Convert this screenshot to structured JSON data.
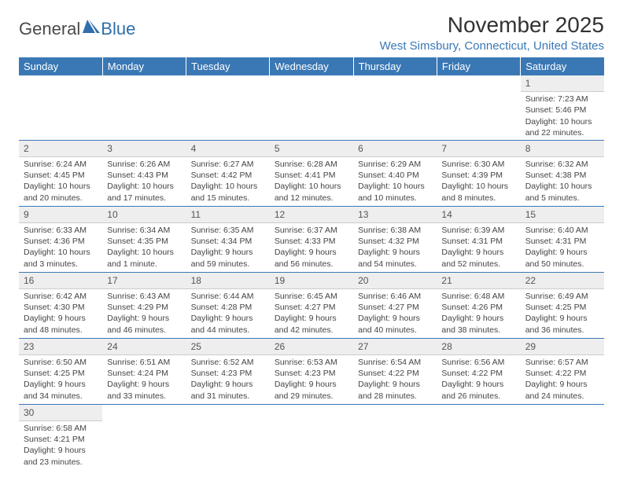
{
  "logo": {
    "text1": "General",
    "text2": "Blue"
  },
  "title": "November 2025",
  "location": "West Simsbury, Connecticut, United States",
  "colors": {
    "header_bg": "#3a78b5",
    "header_text": "#ffffff",
    "day_num_bg": "#eeeeee",
    "cell_border": "#3a78b5",
    "body_bg": "#ffffff",
    "text": "#333333",
    "location_color": "#3a78b5"
  },
  "weekdays": [
    "Sunday",
    "Monday",
    "Tuesday",
    "Wednesday",
    "Thursday",
    "Friday",
    "Saturday"
  ],
  "weeks": [
    [
      {
        "empty": true
      },
      {
        "empty": true
      },
      {
        "empty": true
      },
      {
        "empty": true
      },
      {
        "empty": true
      },
      {
        "empty": true
      },
      {
        "num": "1",
        "sunrise": "Sunrise: 7:23 AM",
        "sunset": "Sunset: 5:46 PM",
        "daylight": "Daylight: 10 hours and 22 minutes."
      }
    ],
    [
      {
        "num": "2",
        "sunrise": "Sunrise: 6:24 AM",
        "sunset": "Sunset: 4:45 PM",
        "daylight": "Daylight: 10 hours and 20 minutes."
      },
      {
        "num": "3",
        "sunrise": "Sunrise: 6:26 AM",
        "sunset": "Sunset: 4:43 PM",
        "daylight": "Daylight: 10 hours and 17 minutes."
      },
      {
        "num": "4",
        "sunrise": "Sunrise: 6:27 AM",
        "sunset": "Sunset: 4:42 PM",
        "daylight": "Daylight: 10 hours and 15 minutes."
      },
      {
        "num": "5",
        "sunrise": "Sunrise: 6:28 AM",
        "sunset": "Sunset: 4:41 PM",
        "daylight": "Daylight: 10 hours and 12 minutes."
      },
      {
        "num": "6",
        "sunrise": "Sunrise: 6:29 AM",
        "sunset": "Sunset: 4:40 PM",
        "daylight": "Daylight: 10 hours and 10 minutes."
      },
      {
        "num": "7",
        "sunrise": "Sunrise: 6:30 AM",
        "sunset": "Sunset: 4:39 PM",
        "daylight": "Daylight: 10 hours and 8 minutes."
      },
      {
        "num": "8",
        "sunrise": "Sunrise: 6:32 AM",
        "sunset": "Sunset: 4:38 PM",
        "daylight": "Daylight: 10 hours and 5 minutes."
      }
    ],
    [
      {
        "num": "9",
        "sunrise": "Sunrise: 6:33 AM",
        "sunset": "Sunset: 4:36 PM",
        "daylight": "Daylight: 10 hours and 3 minutes."
      },
      {
        "num": "10",
        "sunrise": "Sunrise: 6:34 AM",
        "sunset": "Sunset: 4:35 PM",
        "daylight": "Daylight: 10 hours and 1 minute."
      },
      {
        "num": "11",
        "sunrise": "Sunrise: 6:35 AM",
        "sunset": "Sunset: 4:34 PM",
        "daylight": "Daylight: 9 hours and 59 minutes."
      },
      {
        "num": "12",
        "sunrise": "Sunrise: 6:37 AM",
        "sunset": "Sunset: 4:33 PM",
        "daylight": "Daylight: 9 hours and 56 minutes."
      },
      {
        "num": "13",
        "sunrise": "Sunrise: 6:38 AM",
        "sunset": "Sunset: 4:32 PM",
        "daylight": "Daylight: 9 hours and 54 minutes."
      },
      {
        "num": "14",
        "sunrise": "Sunrise: 6:39 AM",
        "sunset": "Sunset: 4:31 PM",
        "daylight": "Daylight: 9 hours and 52 minutes."
      },
      {
        "num": "15",
        "sunrise": "Sunrise: 6:40 AM",
        "sunset": "Sunset: 4:31 PM",
        "daylight": "Daylight: 9 hours and 50 minutes."
      }
    ],
    [
      {
        "num": "16",
        "sunrise": "Sunrise: 6:42 AM",
        "sunset": "Sunset: 4:30 PM",
        "daylight": "Daylight: 9 hours and 48 minutes."
      },
      {
        "num": "17",
        "sunrise": "Sunrise: 6:43 AM",
        "sunset": "Sunset: 4:29 PM",
        "daylight": "Daylight: 9 hours and 46 minutes."
      },
      {
        "num": "18",
        "sunrise": "Sunrise: 6:44 AM",
        "sunset": "Sunset: 4:28 PM",
        "daylight": "Daylight: 9 hours and 44 minutes."
      },
      {
        "num": "19",
        "sunrise": "Sunrise: 6:45 AM",
        "sunset": "Sunset: 4:27 PM",
        "daylight": "Daylight: 9 hours and 42 minutes."
      },
      {
        "num": "20",
        "sunrise": "Sunrise: 6:46 AM",
        "sunset": "Sunset: 4:27 PM",
        "daylight": "Daylight: 9 hours and 40 minutes."
      },
      {
        "num": "21",
        "sunrise": "Sunrise: 6:48 AM",
        "sunset": "Sunset: 4:26 PM",
        "daylight": "Daylight: 9 hours and 38 minutes."
      },
      {
        "num": "22",
        "sunrise": "Sunrise: 6:49 AM",
        "sunset": "Sunset: 4:25 PM",
        "daylight": "Daylight: 9 hours and 36 minutes."
      }
    ],
    [
      {
        "num": "23",
        "sunrise": "Sunrise: 6:50 AM",
        "sunset": "Sunset: 4:25 PM",
        "daylight": "Daylight: 9 hours and 34 minutes."
      },
      {
        "num": "24",
        "sunrise": "Sunrise: 6:51 AM",
        "sunset": "Sunset: 4:24 PM",
        "daylight": "Daylight: 9 hours and 33 minutes."
      },
      {
        "num": "25",
        "sunrise": "Sunrise: 6:52 AM",
        "sunset": "Sunset: 4:23 PM",
        "daylight": "Daylight: 9 hours and 31 minutes."
      },
      {
        "num": "26",
        "sunrise": "Sunrise: 6:53 AM",
        "sunset": "Sunset: 4:23 PM",
        "daylight": "Daylight: 9 hours and 29 minutes."
      },
      {
        "num": "27",
        "sunrise": "Sunrise: 6:54 AM",
        "sunset": "Sunset: 4:22 PM",
        "daylight": "Daylight: 9 hours and 28 minutes."
      },
      {
        "num": "28",
        "sunrise": "Sunrise: 6:56 AM",
        "sunset": "Sunset: 4:22 PM",
        "daylight": "Daylight: 9 hours and 26 minutes."
      },
      {
        "num": "29",
        "sunrise": "Sunrise: 6:57 AM",
        "sunset": "Sunset: 4:22 PM",
        "daylight": "Daylight: 9 hours and 24 minutes."
      }
    ],
    [
      {
        "num": "30",
        "sunrise": "Sunrise: 6:58 AM",
        "sunset": "Sunset: 4:21 PM",
        "daylight": "Daylight: 9 hours and 23 minutes."
      },
      {
        "empty": true
      },
      {
        "empty": true
      },
      {
        "empty": true
      },
      {
        "empty": true
      },
      {
        "empty": true
      },
      {
        "empty": true
      }
    ]
  ]
}
